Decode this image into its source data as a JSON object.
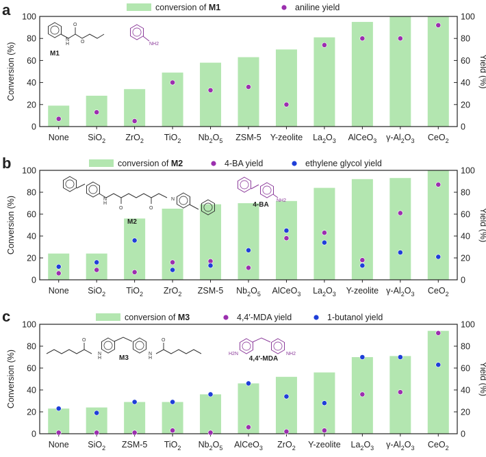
{
  "colors": {
    "bar": "#b3e6b0",
    "purple": "#9b2fae",
    "blue": "#1f3fd8",
    "axis": "#222222",
    "mol_dark": "#333333",
    "mol_purple": "#8b3a9a"
  },
  "chart_data": [
    {
      "id": "a",
      "type": "bar",
      "panel_letter": "a",
      "categories": [
        "None",
        "SiO2",
        "ZrO2",
        "TiO2",
        "Nb2O5",
        "ZSM-5",
        "Y-zeolite",
        "La2O3",
        "AlCeO3",
        "γ-Al2O3",
        "CeO2"
      ],
      "category_display": [
        [
          "None"
        ],
        [
          "SiO",
          "2"
        ],
        [
          "ZrO",
          "2"
        ],
        [
          "TiO",
          "2"
        ],
        [
          "Nb",
          "2",
          "O",
          "5"
        ],
        [
          "ZSM-5"
        ],
        [
          "Y-zeolite"
        ],
        [
          "La",
          "2",
          "O",
          "3"
        ],
        [
          "AlCeO",
          "3"
        ],
        [
          "γ-Al",
          "2",
          "O",
          "3"
        ],
        [
          "CeO",
          "2"
        ]
      ],
      "series": [
        {
          "name": "conversion of M1",
          "kind": "bar",
          "axis": "left",
          "values": [
            19,
            28,
            34,
            49,
            58,
            63,
            70,
            81,
            95,
            100,
            100
          ]
        },
        {
          "name": "aniline yield",
          "kind": "scatter",
          "color": "purple",
          "axis": "right",
          "values": [
            7,
            13,
            5,
            40,
            33,
            36,
            20,
            74,
            80,
            80,
            92
          ]
        }
      ],
      "legend": [
        {
          "kind": "bar",
          "text": "conversion of ",
          "bold": "M1"
        },
        {
          "kind": "dot",
          "color": "purple",
          "text": "aniline yield"
        }
      ],
      "ylabel_left": "Conversion (%)",
      "ylabel_right": "Yield (%)",
      "ylim": [
        0,
        100
      ],
      "yticks": [
        0,
        20,
        40,
        60,
        80,
        100
      ],
      "molecules": [
        "M1",
        "NH2"
      ]
    },
    {
      "id": "b",
      "type": "bar",
      "panel_letter": "b",
      "categories": [
        "None",
        "SiO2",
        "TiO2",
        "ZrO2",
        "ZSM-5",
        "Nb2O5",
        "AlCeO3",
        "La2O3",
        "Y-zeolite",
        "γ-Al2O3",
        "CeO2"
      ],
      "category_display": [
        [
          "None"
        ],
        [
          "SiO",
          "2"
        ],
        [
          "TiO",
          "2"
        ],
        [
          "ZrO",
          "2"
        ],
        [
          "ZSM-5"
        ],
        [
          "Nb",
          "2",
          "O",
          "5"
        ],
        [
          "AlCeO",
          "3"
        ],
        [
          "La",
          "2",
          "O",
          "3"
        ],
        [
          "Y-zeolite"
        ],
        [
          "γ-Al",
          "2",
          "O",
          "3"
        ],
        [
          "CeO",
          "2"
        ]
      ],
      "series": [
        {
          "name": "conversion of M2",
          "kind": "bar",
          "axis": "left",
          "values": [
            24,
            24,
            56,
            65,
            69,
            70,
            72,
            84,
            92,
            93,
            100
          ]
        },
        {
          "name": "4-BA yield",
          "kind": "scatter",
          "color": "purple",
          "axis": "right",
          "values": [
            6,
            9,
            7,
            16,
            17,
            11,
            38,
            43,
            18,
            61,
            87
          ]
        },
        {
          "name": "ethylene glycol yield",
          "kind": "scatter",
          "color": "blue",
          "axis": "right",
          "values": [
            12,
            16,
            36,
            9,
            13,
            27,
            45,
            34,
            13,
            25,
            21
          ]
        }
      ],
      "legend": [
        {
          "kind": "bar",
          "text": "conversion of ",
          "bold": "M2"
        },
        {
          "kind": "dot",
          "color": "purple",
          "text": "4-BA yield"
        },
        {
          "kind": "dot",
          "color": "blue",
          "text": "ethylene glycol yield"
        }
      ],
      "ylabel_left": "Conversion (%)",
      "ylabel_right": "Yield (%)",
      "ylim": [
        0,
        100
      ],
      "yticks": [
        0,
        20,
        40,
        60,
        80,
        100
      ],
      "molecules": [
        "M2",
        "4-BA",
        "NH2",
        "N",
        "H",
        "O"
      ]
    },
    {
      "id": "c",
      "type": "bar",
      "panel_letter": "c",
      "categories": [
        "None",
        "SiO2",
        "ZSM-5",
        "TiO2",
        "Nb2O5",
        "AlCeO3",
        "ZrO2",
        "Y-zeolite",
        "La2O3",
        "γ-Al2O3",
        "CeO2"
      ],
      "category_display": [
        [
          "None"
        ],
        [
          "SiO",
          "2"
        ],
        [
          "ZSM-5"
        ],
        [
          "TiO",
          "2"
        ],
        [
          "Nb",
          "2",
          "O",
          "5"
        ],
        [
          "AlCeO",
          "3"
        ],
        [
          "ZrO",
          "2"
        ],
        [
          "Y-zeolite"
        ],
        [
          "La",
          "2",
          "O",
          "3"
        ],
        [
          "γ-Al",
          "2",
          "O",
          "3"
        ],
        [
          "CeO",
          "2"
        ]
      ],
      "series": [
        {
          "name": "conversion of M3",
          "kind": "bar",
          "axis": "left",
          "values": [
            23,
            24,
            29,
            29,
            36,
            46,
            52,
            56,
            70,
            71,
            94
          ]
        },
        {
          "name": "4,4′-MDA yield",
          "kind": "scatter",
          "color": "purple",
          "axis": "right",
          "values": [
            1,
            1,
            1,
            3,
            1,
            6,
            2,
            3,
            36,
            38,
            92
          ]
        },
        {
          "name": "1-butanol yield",
          "kind": "scatter",
          "color": "blue",
          "axis": "right",
          "values": [
            23,
            19,
            29,
            29,
            36,
            46,
            34,
            28,
            70,
            70,
            63
          ]
        }
      ],
      "legend": [
        {
          "kind": "bar",
          "text": "conversion of ",
          "bold": "M3"
        },
        {
          "kind": "dot",
          "color": "purple",
          "text": "4,4′-MDA yield"
        },
        {
          "kind": "dot",
          "color": "blue",
          "text": "1-butanol yield"
        }
      ],
      "ylabel_left": "Conversion (%)",
      "ylabel_right": "Yield (%)",
      "ylim": [
        0,
        100
      ],
      "yticks": [
        0,
        20,
        40,
        60,
        80,
        100
      ],
      "molecules": [
        "M3",
        "4,4′-MDA",
        "H2N",
        "NH2",
        "N",
        "H",
        "O"
      ]
    }
  ]
}
